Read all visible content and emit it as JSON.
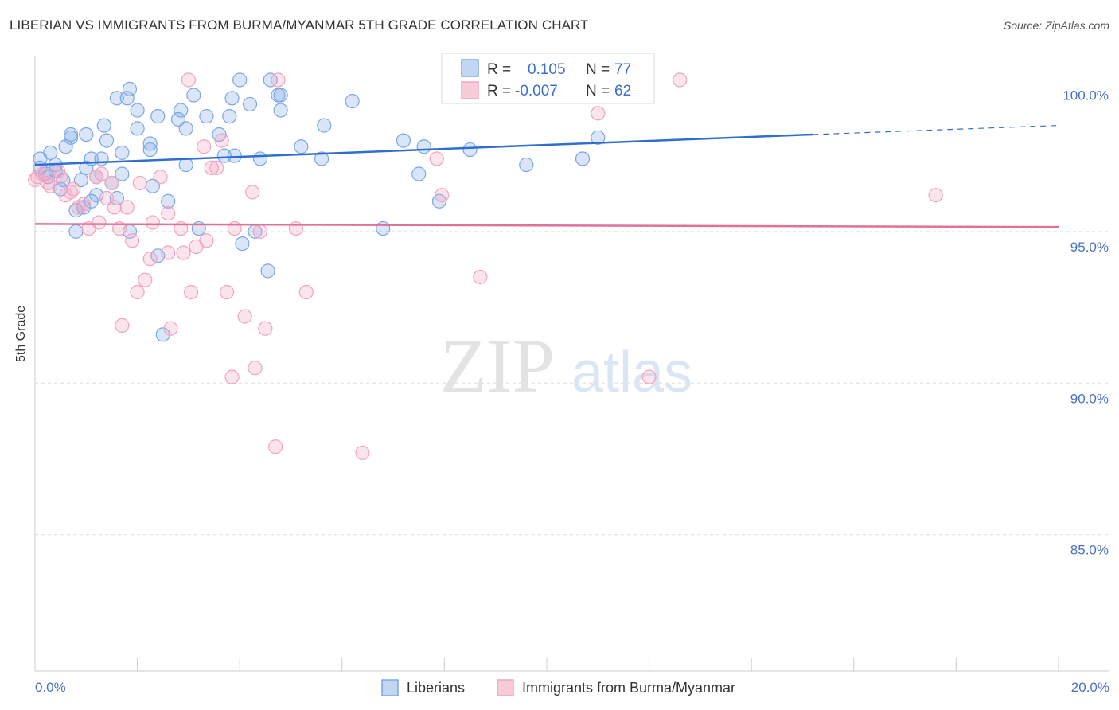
{
  "title": "LIBERIAN VS IMMIGRANTS FROM BURMA/MYANMAR 5TH GRADE CORRELATION CHART",
  "source": "Source: ZipAtlas.com",
  "watermark": {
    "zip": "ZIP",
    "atlas": "atlas"
  },
  "legend_top": [
    {
      "r_label": "R =",
      "r_value": "0.105",
      "n_label": "N =",
      "n_value": "77"
    },
    {
      "r_label": "R =",
      "r_value": "-0.007",
      "n_label": "N =",
      "n_value": "62"
    }
  ],
  "chart_data": {
    "type": "scatter",
    "title": "LIBERIAN VS IMMIGRANTS FROM BURMA/MYANMAR 5TH GRADE CORRELATION CHART",
    "xlabel": "",
    "ylabel": "5th Grade",
    "xlim": [
      0,
      20
    ],
    "ylim": [
      80.5,
      100.8
    ],
    "x_tick_labels": [
      "0.0%",
      "20.0%"
    ],
    "y_ticks": [
      100,
      95,
      90,
      85
    ],
    "y_tick_labels": [
      "100.0%",
      "95.0%",
      "90.0%",
      "85.0%"
    ],
    "grid": true,
    "legend_position": "bottom",
    "colors": {
      "liberians": "#7aa7e6",
      "burma": "#f2a3bd",
      "liberians_line": "#2f6fd0",
      "burma_line": "#e0719b"
    },
    "series": [
      {
        "name": "Liberians",
        "trend": {
          "x0": 0,
          "y0": 97.2,
          "x1": 15.2,
          "y1": 98.2,
          "dash_to_x": 20,
          "dash_to_y": 98.5
        },
        "points": [
          [
            0.1,
            97.4
          ],
          [
            0.1,
            97.1
          ],
          [
            0.2,
            96.9
          ],
          [
            0.25,
            96.8
          ],
          [
            0.3,
            97.6
          ],
          [
            0.4,
            97.0
          ],
          [
            0.4,
            97.2
          ],
          [
            0.5,
            96.4
          ],
          [
            0.55,
            96.7
          ],
          [
            0.6,
            97.8
          ],
          [
            0.7,
            98.1
          ],
          [
            0.7,
            98.2
          ],
          [
            0.8,
            95.7
          ],
          [
            0.8,
            95.0
          ],
          [
            0.9,
            96.7
          ],
          [
            0.95,
            95.8
          ],
          [
            1.0,
            98.2
          ],
          [
            1.0,
            97.1
          ],
          [
            1.1,
            96.0
          ],
          [
            1.1,
            97.4
          ],
          [
            1.2,
            96.2
          ],
          [
            1.2,
            96.8
          ],
          [
            1.3,
            97.4
          ],
          [
            1.35,
            98.5
          ],
          [
            1.4,
            98.0
          ],
          [
            1.5,
            96.6
          ],
          [
            1.6,
            99.4
          ],
          [
            1.6,
            96.1
          ],
          [
            1.7,
            96.9
          ],
          [
            1.7,
            97.6
          ],
          [
            1.8,
            99.4
          ],
          [
            1.85,
            99.7
          ],
          [
            1.85,
            95.0
          ],
          [
            2.0,
            98.4
          ],
          [
            2.0,
            99.0
          ],
          [
            2.25,
            97.7
          ],
          [
            2.25,
            97.9
          ],
          [
            2.3,
            96.5
          ],
          [
            2.4,
            98.8
          ],
          [
            2.4,
            94.2
          ],
          [
            2.5,
            91.6
          ],
          [
            2.6,
            96.0
          ],
          [
            2.8,
            98.7
          ],
          [
            2.85,
            99.0
          ],
          [
            2.95,
            97.2
          ],
          [
            2.95,
            98.4
          ],
          [
            3.1,
            99.5
          ],
          [
            3.2,
            95.1
          ],
          [
            3.35,
            98.8
          ],
          [
            3.6,
            98.2
          ],
          [
            3.7,
            97.5
          ],
          [
            3.8,
            98.8
          ],
          [
            3.85,
            99.4
          ],
          [
            3.9,
            97.5
          ],
          [
            4.0,
            100.0
          ],
          [
            4.05,
            94.6
          ],
          [
            4.2,
            99.2
          ],
          [
            4.3,
            95.0
          ],
          [
            4.4,
            97.4
          ],
          [
            4.55,
            93.7
          ],
          [
            4.6,
            100.0
          ],
          [
            4.8,
            99.0
          ],
          [
            4.75,
            99.5
          ],
          [
            4.8,
            99.5
          ],
          [
            5.2,
            97.8
          ],
          [
            5.6,
            97.4
          ],
          [
            5.65,
            98.5
          ],
          [
            6.2,
            99.3
          ],
          [
            6.8,
            95.1
          ],
          [
            7.2,
            98.0
          ],
          [
            7.5,
            96.9
          ],
          [
            7.6,
            97.8
          ],
          [
            7.9,
            96.0
          ],
          [
            8.5,
            97.7
          ],
          [
            9.6,
            97.2
          ],
          [
            10.7,
            97.4
          ],
          [
            11.0,
            98.1
          ]
        ]
      },
      {
        "name": "Immigrants from Burma/Myanmar",
        "trend": {
          "x0": 0,
          "y0": 95.25,
          "x1": 20,
          "y1": 95.15
        },
        "points": [
          [
            0.05,
            96.8
          ],
          [
            0.15,
            96.9
          ],
          [
            0.25,
            96.6
          ],
          [
            0.3,
            96.5
          ],
          [
            0.45,
            97.0
          ],
          [
            0.5,
            96.8
          ],
          [
            0.6,
            96.2
          ],
          [
            0.7,
            96.3
          ],
          [
            0.75,
            96.4
          ],
          [
            0.85,
            95.8
          ],
          [
            0.95,
            95.9
          ],
          [
            1.05,
            95.1
          ],
          [
            1.2,
            96.8
          ],
          [
            1.25,
            95.3
          ],
          [
            1.4,
            96.1
          ],
          [
            1.5,
            96.6
          ],
          [
            1.55,
            95.8
          ],
          [
            1.65,
            95.1
          ],
          [
            1.7,
            91.9
          ],
          [
            1.8,
            95.8
          ],
          [
            1.9,
            94.7
          ],
          [
            2.0,
            93.0
          ],
          [
            2.05,
            96.6
          ],
          [
            2.15,
            93.4
          ],
          [
            2.25,
            94.1
          ],
          [
            2.3,
            95.3
          ],
          [
            2.45,
            96.8
          ],
          [
            2.6,
            94.3
          ],
          [
            2.6,
            95.6
          ],
          [
            2.65,
            91.8
          ],
          [
            2.85,
            95.1
          ],
          [
            2.9,
            94.3
          ],
          [
            3.0,
            100.0
          ],
          [
            3.05,
            93.0
          ],
          [
            3.15,
            94.5
          ],
          [
            3.3,
            97.8
          ],
          [
            3.35,
            94.7
          ],
          [
            3.45,
            97.1
          ],
          [
            3.55,
            97.1
          ],
          [
            3.65,
            98.0
          ],
          [
            3.75,
            93.0
          ],
          [
            3.85,
            90.2
          ],
          [
            3.9,
            95.1
          ],
          [
            4.1,
            92.2
          ],
          [
            4.25,
            96.3
          ],
          [
            4.3,
            90.5
          ],
          [
            4.4,
            95.0
          ],
          [
            4.5,
            91.8
          ],
          [
            4.7,
            87.9
          ],
          [
            4.75,
            100.0
          ],
          [
            5.1,
            95.1
          ],
          [
            5.3,
            93.0
          ],
          [
            6.4,
            87.7
          ],
          [
            7.85,
            97.4
          ],
          [
            7.95,
            96.2
          ],
          [
            8.7,
            93.5
          ],
          [
            11.0,
            98.9
          ],
          [
            12.0,
            90.2
          ],
          [
            12.6,
            100.0
          ],
          [
            17.6,
            96.2
          ],
          [
            0.0,
            96.7
          ],
          [
            1.3,
            96.9
          ]
        ]
      }
    ]
  }
}
